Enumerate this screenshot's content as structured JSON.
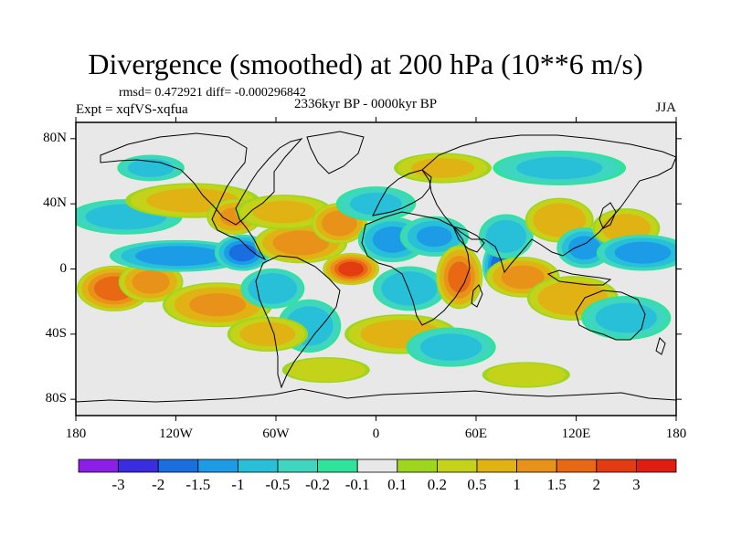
{
  "title": "Divergence (smoothed) at 200 hPa (10**6 m/s)",
  "stats_line": "rmsd= 0.472921 diff= -0.000296842",
  "experiment_label": "Expt = xqfVS-xqfua",
  "period_label": "2336kyr BP - 0000kyr BP",
  "season_label": "JJA",
  "map": {
    "lon_range": [
      -180,
      180
    ],
    "lat_range": [
      -90,
      90
    ],
    "lat_ticks": [
      {
        "value": 80,
        "label": "80N"
      },
      {
        "value": 40,
        "label": "40N"
      },
      {
        "value": 0,
        "label": "0"
      },
      {
        "value": -40,
        "label": "40S"
      },
      {
        "value": -80,
        "label": "80S"
      }
    ],
    "lon_ticks": [
      {
        "value": -180,
        "label": "180"
      },
      {
        "value": -120,
        "label": "120W"
      },
      {
        "value": -60,
        "label": "60W"
      },
      {
        "value": 0,
        "label": "0"
      },
      {
        "value": 60,
        "label": "60E"
      },
      {
        "value": 120,
        "label": "120E"
      },
      {
        "value": 180,
        "label": "180"
      }
    ],
    "anomaly_blobs": [
      {
        "lon": -157,
        "lat": -12,
        "rlon": 16,
        "rlat": 10,
        "v": 1.8
      },
      {
        "lon": -135,
        "lat": -8,
        "rlon": 14,
        "rlat": 9,
        "v": 1.2
      },
      {
        "lon": -95,
        "lat": -22,
        "rlon": 24,
        "rlat": 10,
        "v": 1.0
      },
      {
        "lon": -118,
        "lat": 8,
        "rlon": 30,
        "rlat": 7,
        "v": -1.4
      },
      {
        "lon": -80,
        "lat": 10,
        "rlon": 12,
        "rlat": 8,
        "v": -1.6
      },
      {
        "lon": -150,
        "lat": 32,
        "rlon": 25,
        "rlat": 8,
        "v": -0.7
      },
      {
        "lon": -110,
        "lat": 42,
        "rlon": 30,
        "rlat": 8,
        "v": 0.6
      },
      {
        "lon": -85,
        "lat": 32,
        "rlon": 12,
        "rlat": 8,
        "v": 1.0
      },
      {
        "lon": -45,
        "lat": 16,
        "rlon": 20,
        "rlat": 9,
        "v": 1.3
      },
      {
        "lon": -55,
        "lat": 35,
        "rlon": 22,
        "rlat": 8,
        "v": 0.5
      },
      {
        "lon": -62,
        "lat": -12,
        "rlon": 14,
        "rlat": 9,
        "v": -0.9
      },
      {
        "lon": -40,
        "lat": -35,
        "rlon": 14,
        "rlat": 12,
        "v": -0.8
      },
      {
        "lon": -65,
        "lat": -40,
        "rlon": 18,
        "rlat": 8,
        "v": 0.6
      },
      {
        "lon": -15,
        "lat": 0,
        "rlon": 12,
        "rlat": 7,
        "v": 2.1
      },
      {
        "lon": -22,
        "lat": 28,
        "rlon": 12,
        "rlat": 9,
        "v": 1.4
      },
      {
        "lon": 0,
        "lat": 40,
        "rlon": 18,
        "rlat": 8,
        "v": -0.5
      },
      {
        "lon": 10,
        "lat": 18,
        "rlon": 15,
        "rlat": 10,
        "v": -1.2
      },
      {
        "lon": 35,
        "lat": 20,
        "rlon": 15,
        "rlat": 9,
        "v": -1.0
      },
      {
        "lon": 20,
        "lat": -12,
        "rlon": 16,
        "rlat": 10,
        "v": -0.9
      },
      {
        "lon": 15,
        "lat": -40,
        "rlon": 25,
        "rlat": 9,
        "v": 0.7
      },
      {
        "lon": 50,
        "lat": -5,
        "rlon": 10,
        "rlat": 14,
        "v": 1.6
      },
      {
        "lon": 45,
        "lat": -48,
        "rlon": 20,
        "rlat": 9,
        "v": -0.6
      },
      {
        "lon": 75,
        "lat": 2,
        "rlon": 8,
        "rlat": 11,
        "v": -1.9
      },
      {
        "lon": 78,
        "lat": 20,
        "rlon": 12,
        "rlat": 10,
        "v": -0.8
      },
      {
        "lon": 88,
        "lat": -5,
        "rlon": 16,
        "rlat": 9,
        "v": 1.2
      },
      {
        "lon": 110,
        "lat": 30,
        "rlon": 15,
        "rlat": 10,
        "v": 0.9
      },
      {
        "lon": 125,
        "lat": 13,
        "rlon": 12,
        "rlat": 9,
        "v": -1.2
      },
      {
        "lon": 118,
        "lat": -18,
        "rlon": 20,
        "rlat": 10,
        "v": 0.9
      },
      {
        "lon": 150,
        "lat": 25,
        "rlon": 15,
        "rlat": 9,
        "v": 0.7
      },
      {
        "lon": 160,
        "lat": 10,
        "rlon": 20,
        "rlat": 8,
        "v": -1.3
      },
      {
        "lon": 150,
        "lat": -30,
        "rlon": 20,
        "rlat": 10,
        "v": -0.6
      },
      {
        "lon": 40,
        "lat": 62,
        "rlon": 22,
        "rlat": 7,
        "v": 0.5
      },
      {
        "lon": 110,
        "lat": 62,
        "rlon": 30,
        "rlat": 8,
        "v": -0.5
      },
      {
        "lon": -135,
        "lat": 62,
        "rlon": 15,
        "rlat": 6,
        "v": -0.6
      },
      {
        "lon": -30,
        "lat": -62,
        "rlon": 20,
        "rlat": 6,
        "v": 0.4
      },
      {
        "lon": 90,
        "lat": -65,
        "rlon": 20,
        "rlat": 6,
        "v": 0.4
      }
    ]
  },
  "colorbar": {
    "colors": [
      "#8b1fe8",
      "#3a2de0",
      "#1a6fe0",
      "#1c9ce6",
      "#28c0d8",
      "#3fd6c0",
      "#2fe39a",
      "#e8e8e8",
      "#9ed61f",
      "#c4d21a",
      "#e0b214",
      "#e8921a",
      "#e86814",
      "#e23c10",
      "#e01e10"
    ],
    "labels": [
      "-3",
      "-2",
      "-1.5",
      "-1",
      "-0.5",
      "-0.2",
      "-0.1",
      "0.1",
      "0.2",
      "0.5",
      "1",
      "1.5",
      "2",
      "3"
    ],
    "levels": [
      -3,
      -2,
      -1.5,
      -1,
      -0.5,
      -0.2,
      -0.1,
      0.1,
      0.2,
      0.5,
      1,
      1.5,
      2,
      3
    ]
  }
}
